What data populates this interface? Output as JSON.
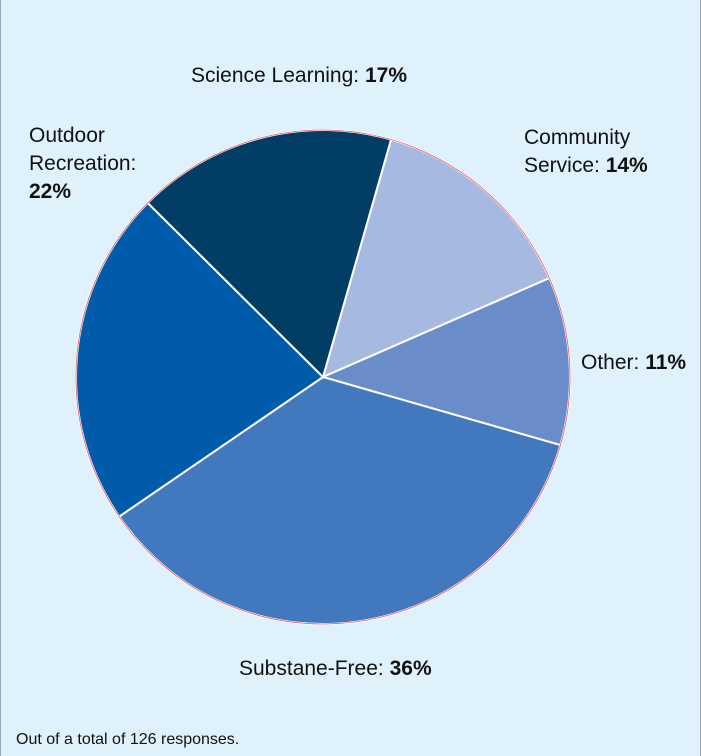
{
  "chart_data": {
    "type": "pie",
    "start_angle_deg": 16,
    "direction": "clockwise",
    "slices": [
      {
        "label": "Community Service:",
        "value": 14,
        "display": "14%",
        "color": "#a6b9e1"
      },
      {
        "label": "Other:",
        "value": 11,
        "display": "11%",
        "color": "#6a8cc8"
      },
      {
        "label": "Substane-Free:",
        "value": 36,
        "display": "36%",
        "color": "#4278be"
      },
      {
        "label": "Outdoor Recreation:",
        "label_lines": [
          "Outdoor",
          "Recreation:"
        ],
        "value": 22,
        "display": "22%",
        "color": "#005bab"
      },
      {
        "label": "Science Learning:",
        "value": 17,
        "display": "17%",
        "color": "#013d64"
      }
    ]
  },
  "footnote": "Out of a total of 126 responses."
}
